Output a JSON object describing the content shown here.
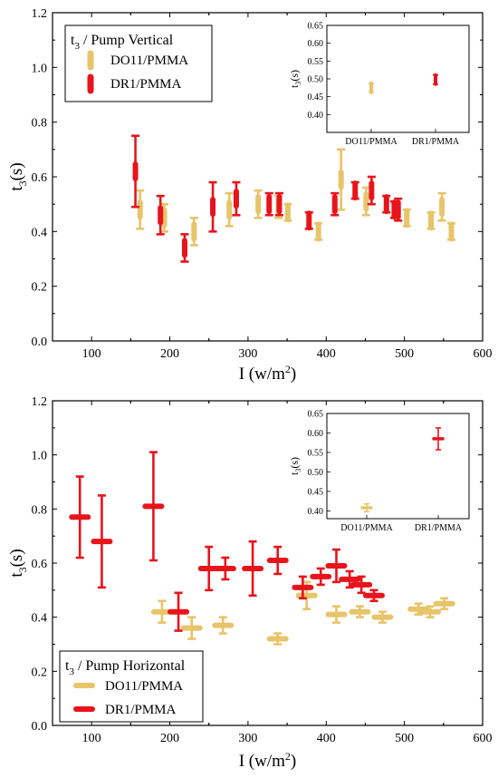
{
  "colors": {
    "do11": "#e8c46a",
    "dr1": "#e8141b"
  },
  "chart_data": [
    {
      "type": "scatter",
      "legend_title_main": "t",
      "legend_title_sub": "3",
      "legend_title_rest": " / Pump Vertical",
      "legend_position": "top-left",
      "xlabel_main": "I (w/m",
      "xlabel_sup": "2",
      "xlabel_end": ")",
      "ylabel_main": "t",
      "ylabel_sub": "3",
      "ylabel_end": "(s)",
      "xlim": [
        50,
        600
      ],
      "ylim": [
        0,
        1.2
      ],
      "xticks": [
        "100",
        "200",
        "300",
        "400",
        "500",
        "600"
      ],
      "yticks": [
        "0.0",
        "0.2",
        "0.4",
        "0.6",
        "0.8",
        "1.0",
        "1.2"
      ],
      "orientation": "vertical",
      "series": [
        {
          "name": "DO11/PMMA",
          "color_key": "do11",
          "points": [
            {
              "x": 162,
              "y": 0.48,
              "err": 0.07
            },
            {
              "x": 193,
              "y": 0.45,
              "err": 0.05
            },
            {
              "x": 231,
              "y": 0.4,
              "err": 0.05
            },
            {
              "x": 276,
              "y": 0.48,
              "err": 0.06
            },
            {
              "x": 313,
              "y": 0.5,
              "err": 0.05
            },
            {
              "x": 339,
              "y": 0.49,
              "err": 0.04
            },
            {
              "x": 351,
              "y": 0.47,
              "err": 0.03
            },
            {
              "x": 390,
              "y": 0.4,
              "err": 0.03
            },
            {
              "x": 419,
              "y": 0.59,
              "err": 0.11
            },
            {
              "x": 451,
              "y": 0.51,
              "err": 0.05
            },
            {
              "x": 503,
              "y": 0.45,
              "err": 0.03
            },
            {
              "x": 534,
              "y": 0.44,
              "err": 0.03
            },
            {
              "x": 548,
              "y": 0.49,
              "err": 0.05
            },
            {
              "x": 560,
              "y": 0.4,
              "err": 0.03
            }
          ]
        },
        {
          "name": "DR1/PMMA",
          "color_key": "dr1",
          "points": [
            {
              "x": 156,
              "y": 0.62,
              "err": 0.13
            },
            {
              "x": 188,
              "y": 0.46,
              "err": 0.07
            },
            {
              "x": 219,
              "y": 0.34,
              "err": 0.05
            },
            {
              "x": 255,
              "y": 0.49,
              "err": 0.09
            },
            {
              "x": 285,
              "y": 0.52,
              "err": 0.06
            },
            {
              "x": 327,
              "y": 0.5,
              "err": 0.04
            },
            {
              "x": 340,
              "y": 0.5,
              "err": 0.04
            },
            {
              "x": 378,
              "y": 0.44,
              "err": 0.03
            },
            {
              "x": 411,
              "y": 0.5,
              "err": 0.04
            },
            {
              "x": 437,
              "y": 0.55,
              "err": 0.03
            },
            {
              "x": 458,
              "y": 0.55,
              "err": 0.05
            },
            {
              "x": 477,
              "y": 0.5,
              "err": 0.03
            },
            {
              "x": 487,
              "y": 0.48,
              "err": 0.03
            },
            {
              "x": 492,
              "y": 0.48,
              "err": 0.04
            }
          ]
        }
      ],
      "inset": {
        "ylabel_main": "t",
        "ylabel_sub": "3",
        "ylabel_end": "(s)",
        "ylim": [
          0.35,
          0.65
        ],
        "yticks": [
          "0.40",
          "0.45",
          "0.50",
          "0.55",
          "0.60",
          "0.65"
        ],
        "categories": [
          "DO11/PMMA",
          "DR1/PMMA"
        ],
        "points": [
          {
            "category": "DO11/PMMA",
            "y": 0.475,
            "err": 0.012,
            "color_key": "do11"
          },
          {
            "category": "DR1/PMMA",
            "y": 0.498,
            "err": 0.013,
            "color_key": "dr1"
          }
        ]
      }
    },
    {
      "type": "scatter",
      "legend_title_main": "t",
      "legend_title_sub": "3",
      "legend_title_rest": " / Pump Horizontal",
      "legend_position": "bottom-left",
      "xlabel_main": "I (w/m",
      "xlabel_sup": "2",
      "xlabel_end": ")",
      "ylabel_main": "t",
      "ylabel_sub": "3",
      "ylabel_end": "(s)",
      "xlim": [
        50,
        600
      ],
      "ylim": [
        0,
        1.2
      ],
      "xticks": [
        "100",
        "200",
        "300",
        "400",
        "500",
        "600"
      ],
      "yticks": [
        "0.0",
        "0.2",
        "0.4",
        "0.6",
        "0.8",
        "1.0",
        "1.2"
      ],
      "orientation": "horizontal",
      "series": [
        {
          "name": "DO11/PMMA",
          "color_key": "do11",
          "points": [
            {
              "x": 190,
              "y": 0.42,
              "err": 0.04
            },
            {
              "x": 228,
              "y": 0.36,
              "err": 0.04
            },
            {
              "x": 268,
              "y": 0.37,
              "err": 0.03
            },
            {
              "x": 338,
              "y": 0.32,
              "err": 0.02
            },
            {
              "x": 375,
              "y": 0.48,
              "err": 0.05
            },
            {
              "x": 413,
              "y": 0.41,
              "err": 0.03
            },
            {
              "x": 443,
              "y": 0.42,
              "err": 0.02
            },
            {
              "x": 472,
              "y": 0.4,
              "err": 0.02
            },
            {
              "x": 518,
              "y": 0.43,
              "err": 0.02
            },
            {
              "x": 533,
              "y": 0.42,
              "err": 0.02
            },
            {
              "x": 551,
              "y": 0.45,
              "err": 0.02
            }
          ]
        },
        {
          "name": "DR1/PMMA",
          "color_key": "dr1",
          "points": [
            {
              "x": 85,
              "y": 0.77,
              "err": 0.15
            },
            {
              "x": 113,
              "y": 0.68,
              "err": 0.17
            },
            {
              "x": 179,
              "y": 0.81,
              "err": 0.2
            },
            {
              "x": 211,
              "y": 0.42,
              "err": 0.07
            },
            {
              "x": 250,
              "y": 0.58,
              "err": 0.08
            },
            {
              "x": 271,
              "y": 0.58,
              "err": 0.04
            },
            {
              "x": 306,
              "y": 0.58,
              "err": 0.1
            },
            {
              "x": 338,
              "y": 0.61,
              "err": 0.05
            },
            {
              "x": 370,
              "y": 0.51,
              "err": 0.04
            },
            {
              "x": 393,
              "y": 0.55,
              "err": 0.03
            },
            {
              "x": 413,
              "y": 0.59,
              "err": 0.06
            },
            {
              "x": 430,
              "y": 0.54,
              "err": 0.03
            },
            {
              "x": 445,
              "y": 0.52,
              "err": 0.03
            },
            {
              "x": 461,
              "y": 0.48,
              "err": 0.02
            }
          ]
        }
      ],
      "inset": {
        "ylabel_main": "t",
        "ylabel_sub": "3",
        "ylabel_end": "(s)",
        "ylim": [
          0.38,
          0.65
        ],
        "yticks": [
          "0.40",
          "0.45",
          "0.50",
          "0.55",
          "0.60",
          "0.65"
        ],
        "categories": [
          "DO11/PMMA",
          "DR1/PMMA"
        ],
        "points": [
          {
            "category": "DO11/PMMA",
            "y": 0.408,
            "err": 0.01,
            "color_key": "do11"
          },
          {
            "category": "DR1/PMMA",
            "y": 0.585,
            "err": 0.028,
            "color_key": "dr1"
          }
        ]
      }
    }
  ]
}
